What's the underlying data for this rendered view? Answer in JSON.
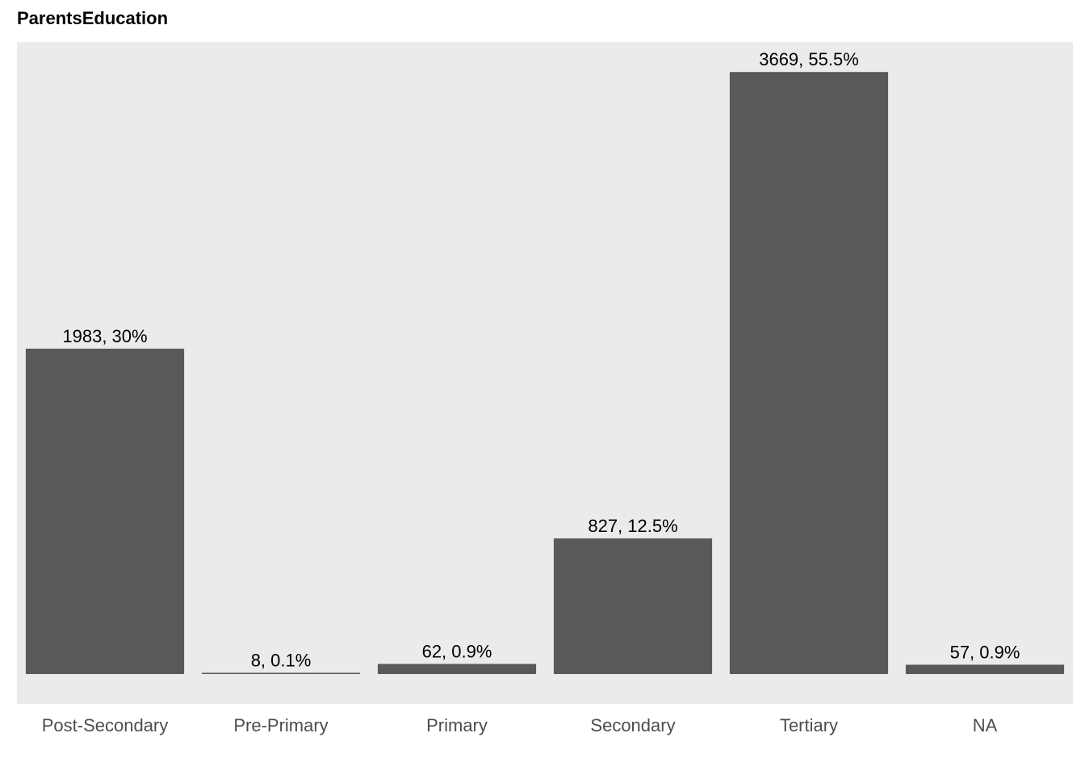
{
  "chart_data": {
    "type": "bar",
    "title": "ParentsEducation",
    "xlabel": "",
    "ylabel": "",
    "categories": [
      "Post-Secondary",
      "Pre-Primary",
      "Primary",
      "Secondary",
      "Tertiary",
      "NA"
    ],
    "values": [
      1983,
      8,
      62,
      827,
      3669,
      57
    ],
    "data_labels": [
      "1983, 30%",
      "8, 0.1%",
      "62, 0.9%",
      "827, 12.5%",
      "3669, 55.5%",
      "57, 0.9%"
    ],
    "ylim": [
      0,
      3852
    ],
    "grid": false,
    "legend": "none",
    "colors": {
      "bar": "#595959",
      "panel": "#ebebeb",
      "tick_text": "#4d4d4d",
      "label_text": "#000000"
    }
  }
}
